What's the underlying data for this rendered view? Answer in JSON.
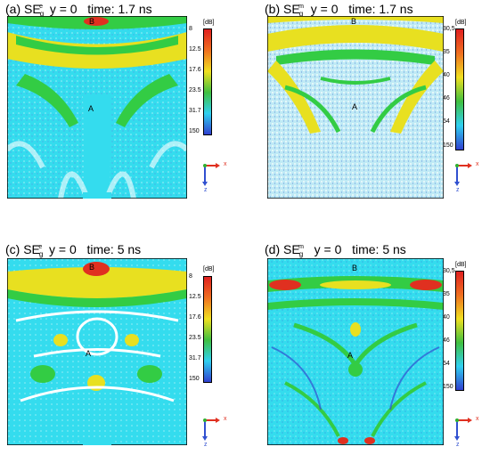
{
  "panels": [
    {
      "letter": "(a)",
      "field": "SE",
      "sup": "e",
      "sub": "g",
      "plane": "y = 0",
      "time": "time: 1.7 ns",
      "colorbar": {
        "unit": "[dB]",
        "ticks": [
          "8",
          "12.5",
          "17.6",
          "23.5",
          "31.7",
          "150"
        ]
      },
      "points": [
        "B",
        "A"
      ]
    },
    {
      "letter": "(b)",
      "field": "SE",
      "sup": "m",
      "sub": "g",
      "plane": "y = 0",
      "time": "time: 1.7 ns",
      "colorbar": {
        "unit": "[dB]",
        "ticks": [
          "30,5",
          "35",
          "40",
          "46",
          "54",
          "150"
        ]
      },
      "points": [
        "B",
        "A"
      ]
    },
    {
      "letter": "(c)",
      "field": "SE",
      "sup": "e",
      "sub": "g",
      "plane": "y = 0",
      "time": "time: 5 ns",
      "colorbar": {
        "unit": "[dB]",
        "ticks": [
          "8",
          "12.5",
          "17.6",
          "23.5",
          "31.7",
          "150"
        ]
      },
      "points": [
        "B",
        "A"
      ]
    },
    {
      "letter": "(d)",
      "field": "SE",
      "sup": "m",
      "sub": "g",
      "plane": "y = 0",
      "time": "time: 5 ns",
      "colorbar": {
        "unit": "[dB]",
        "ticks": [
          "30,5",
          "35",
          "40",
          "46",
          "54",
          "150"
        ]
      },
      "points": [
        "B",
        "A"
      ]
    }
  ],
  "axes": {
    "x": "x",
    "z": "z"
  },
  "colormap": [
    "#e02020",
    "#f07020",
    "#f0e020",
    "#40c040",
    "#30d0f0",
    "#3040d0"
  ],
  "palette": {
    "map_fill": "#2ce0ee",
    "green": "#33cc44",
    "yellow": "#e8e020",
    "red": "#e03020",
    "white_noise": "#ffffff"
  }
}
